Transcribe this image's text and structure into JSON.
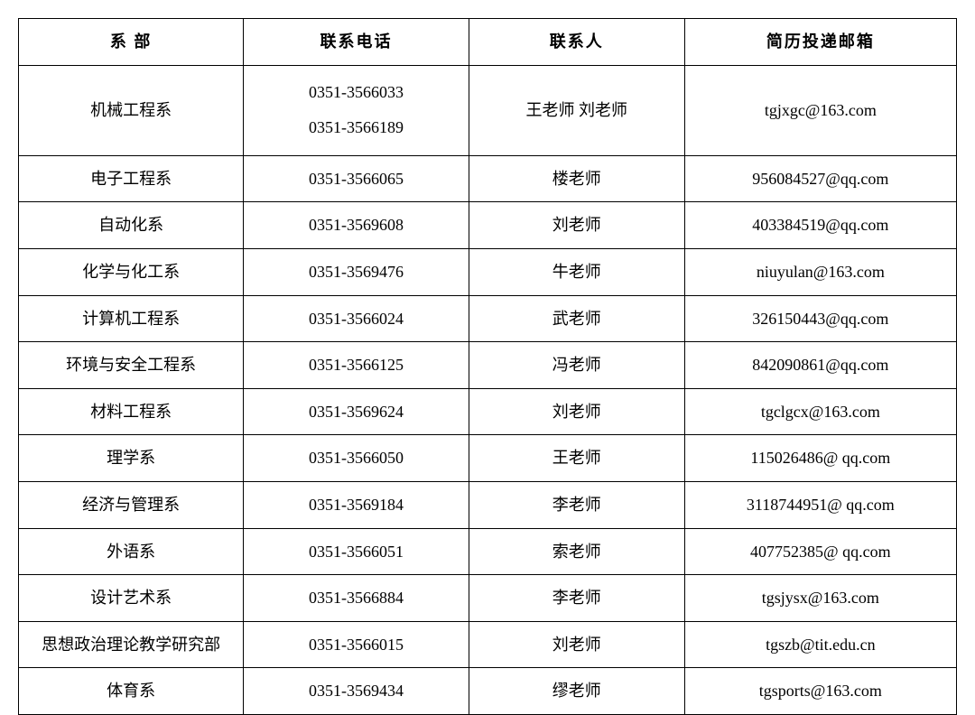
{
  "table": {
    "columns": [
      "系 部",
      "联系电话",
      "联系人",
      "简历投递邮箱"
    ],
    "col_widths": [
      "24%",
      "24%",
      "23%",
      "29%"
    ],
    "border_color": "#000000",
    "background_color": "#ffffff",
    "text_color": "#000000",
    "header_fontweight": "bold",
    "header_letterspacing": "2px",
    "cell_fontsize": 18,
    "font_family": "SimSun",
    "rows": [
      {
        "dept": "机械工程系",
        "phone_lines": [
          "0351-3566033",
          "0351-3566189"
        ],
        "contact": "王老师 刘老师",
        "email": "tgjxgc@163.com"
      },
      {
        "dept": "电子工程系",
        "phone_lines": [
          "0351-3566065"
        ],
        "contact": "楼老师",
        "email": "956084527@qq.com"
      },
      {
        "dept": "自动化系",
        "phone_lines": [
          "0351-3569608"
        ],
        "contact": "刘老师",
        "email": "403384519@qq.com"
      },
      {
        "dept": "化学与化工系",
        "phone_lines": [
          "0351-3569476"
        ],
        "contact": "牛老师",
        "email": "niuyulan@163.com"
      },
      {
        "dept": "计算机工程系",
        "phone_lines": [
          "0351-3566024"
        ],
        "contact": "武老师",
        "email": "326150443@qq.com"
      },
      {
        "dept": "环境与安全工程系",
        "phone_lines": [
          "0351-3566125"
        ],
        "contact": "冯老师",
        "email": "842090861@qq.com"
      },
      {
        "dept": "材料工程系",
        "phone_lines": [
          "0351-3569624"
        ],
        "contact": "刘老师",
        "email": "tgclgcx@163.com"
      },
      {
        "dept": "理学系",
        "phone_lines": [
          "0351-3566050"
        ],
        "contact": "王老师",
        "email": "115026486@  qq.com"
      },
      {
        "dept": "经济与管理系",
        "phone_lines": [
          "0351-3569184"
        ],
        "contact": "李老师",
        "email": "3118744951@  qq.com"
      },
      {
        "dept": "外语系",
        "phone_lines": [
          "0351-3566051"
        ],
        "contact": "索老师",
        "email": "407752385@  qq.com"
      },
      {
        "dept": "设计艺术系",
        "phone_lines": [
          "0351-3566884"
        ],
        "contact": "李老师",
        "email": "tgsjysx@163.com"
      },
      {
        "dept": "思想政治理论教学研究部",
        "phone_lines": [
          "0351-3566015"
        ],
        "contact": "刘老师",
        "email": "tgszb@tit.edu.cn"
      },
      {
        "dept": "体育系",
        "phone_lines": [
          "0351-3569434"
        ],
        "contact": "缪老师",
        "email": "tgsports@163.com"
      }
    ]
  }
}
